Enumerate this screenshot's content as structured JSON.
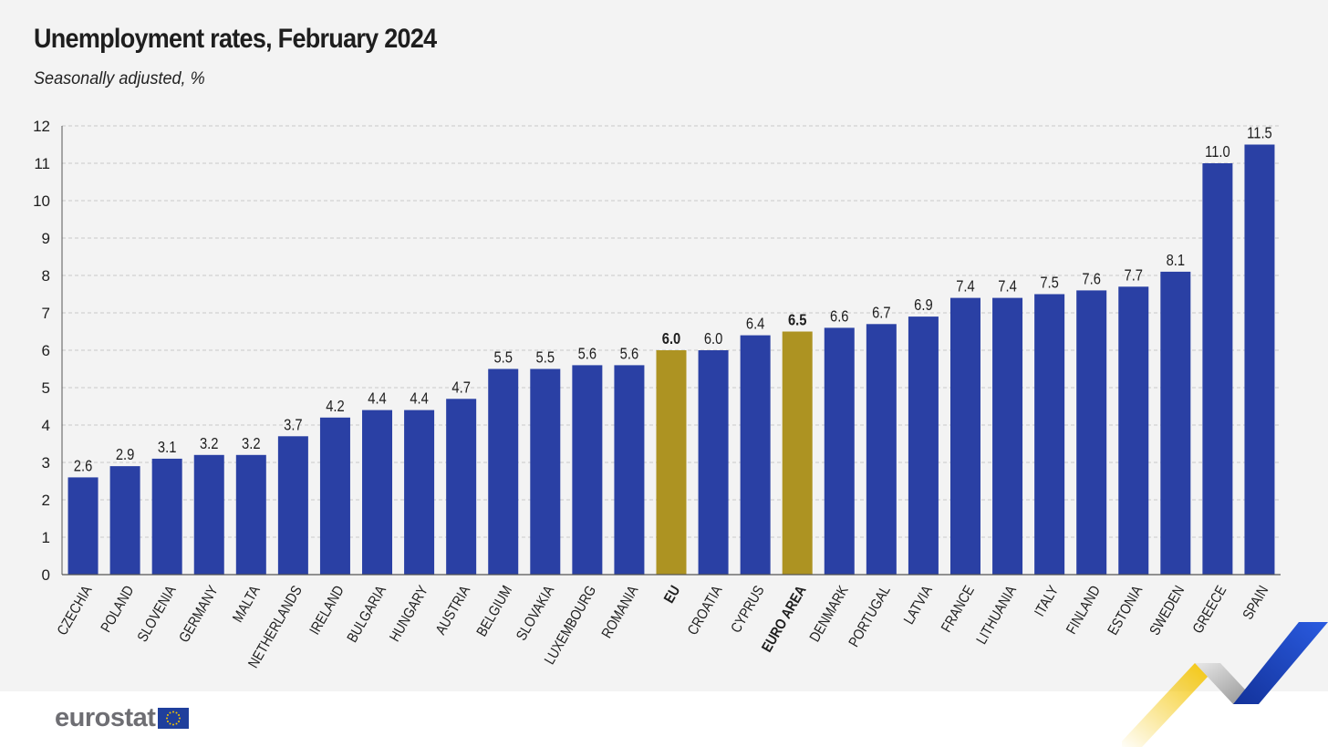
{
  "title": "Unemployment rates, February 2024",
  "subtitle": "Seasonally adjusted, %",
  "logo": {
    "text": "eurostat",
    "flag_icon": "eu-flag-icon"
  },
  "colors": {
    "bar": "#2a40a4",
    "highlight": "#ad9322",
    "grid": "#c9c9c9",
    "axis": "#555555",
    "text": "#1e1e1e",
    "ribbon_yellow": "#f4c400",
    "ribbon_blue": "#1d3fc1",
    "ribbon_gray": "#9a9a9a"
  },
  "chart_data": {
    "type": "bar",
    "title": "Unemployment rates, February 2024",
    "subtitle": "Seasonally adjusted, %",
    "xlabel": "",
    "ylabel": "",
    "ylim": [
      0,
      12
    ],
    "yticks": [
      0,
      1,
      2,
      3,
      4,
      5,
      6,
      7,
      8,
      9,
      10,
      11,
      12
    ],
    "grid": true,
    "legend": "none",
    "categories": [
      "CZECHIA",
      "POLAND",
      "SLOVENIA",
      "GERMANY",
      "MALTA",
      "NETHERLANDS",
      "IRELAND",
      "BULGARIA",
      "HUNGARY",
      "AUSTRIA",
      "BELGIUM",
      "SLOVAKIA",
      "LUXEMBOURG",
      "ROMANIA",
      "EU",
      "CROATIA",
      "CYPRUS",
      "EURO AREA",
      "DENMARK",
      "PORTUGAL",
      "LATVIA",
      "FRANCE",
      "LITHUANIA",
      "ITALY",
      "FINLAND",
      "ESTONIA",
      "SWEDEN",
      "GREECE",
      "SPAIN"
    ],
    "values": [
      2.6,
      2.9,
      3.1,
      3.2,
      3.2,
      3.7,
      4.2,
      4.4,
      4.4,
      4.7,
      5.5,
      5.5,
      5.6,
      5.6,
      6.0,
      6.0,
      6.4,
      6.5,
      6.6,
      6.7,
      6.9,
      7.4,
      7.4,
      7.5,
      7.6,
      7.7,
      8.1,
      11.0,
      11.5
    ],
    "value_labels": [
      "2.6",
      "2.9",
      "3.1",
      "3.2",
      "3.2",
      "3.7",
      "4.2",
      "4.4",
      "4.4",
      "4.7",
      "5.5",
      "5.5",
      "5.6",
      "5.6",
      "6.0",
      "6.0",
      "6.4",
      "6.5",
      "6.6",
      "6.7",
      "6.9",
      "7.4",
      "7.4",
      "7.5",
      "7.6",
      "7.7",
      "8.1",
      "11.0",
      "11.5"
    ],
    "highlighted": [
      "EU",
      "EURO AREA"
    ]
  }
}
